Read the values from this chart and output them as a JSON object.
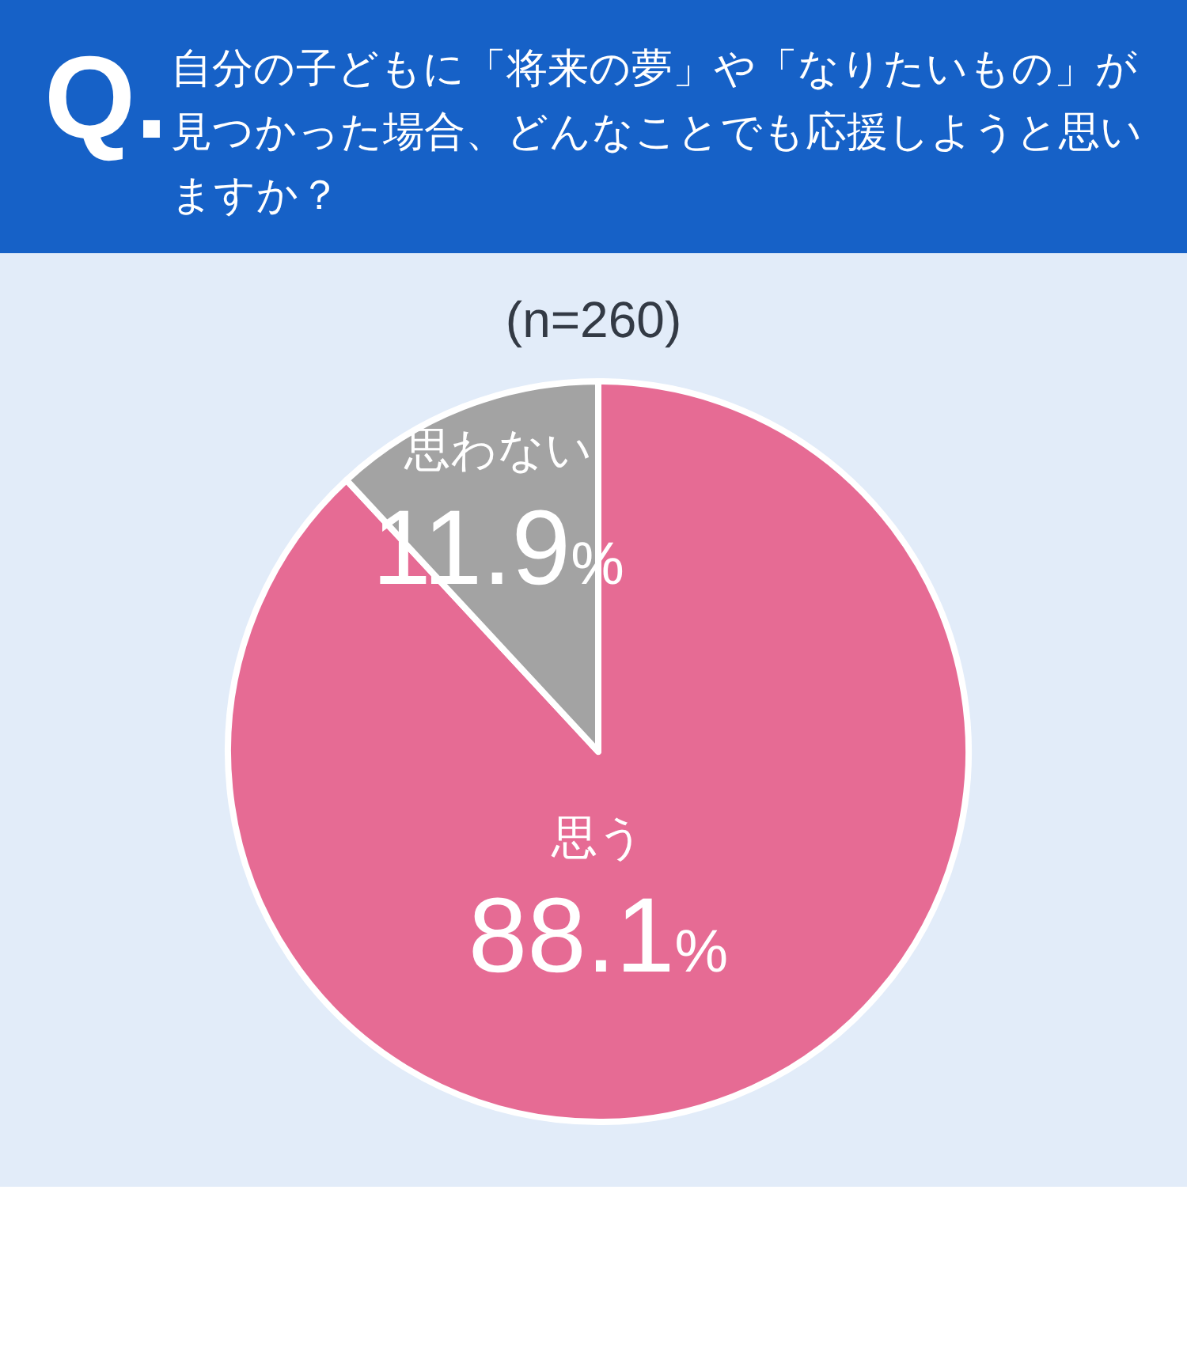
{
  "chart_data": {
    "type": "pie",
    "title": "自分の子どもに「将来の夢」や「なりたいもの」が見つかった場合、どんなことでも応援しようと思いますか？",
    "subtitle": "(n=260)",
    "annotations": [
      "Q."
    ],
    "categories": [
      "思う",
      "思わない"
    ],
    "values": [
      88.1,
      11.9
    ],
    "colors": [
      "#e66b94",
      "#a3a3a3"
    ],
    "value_labels": [
      "88.1%",
      "11.9%"
    ]
  }
}
